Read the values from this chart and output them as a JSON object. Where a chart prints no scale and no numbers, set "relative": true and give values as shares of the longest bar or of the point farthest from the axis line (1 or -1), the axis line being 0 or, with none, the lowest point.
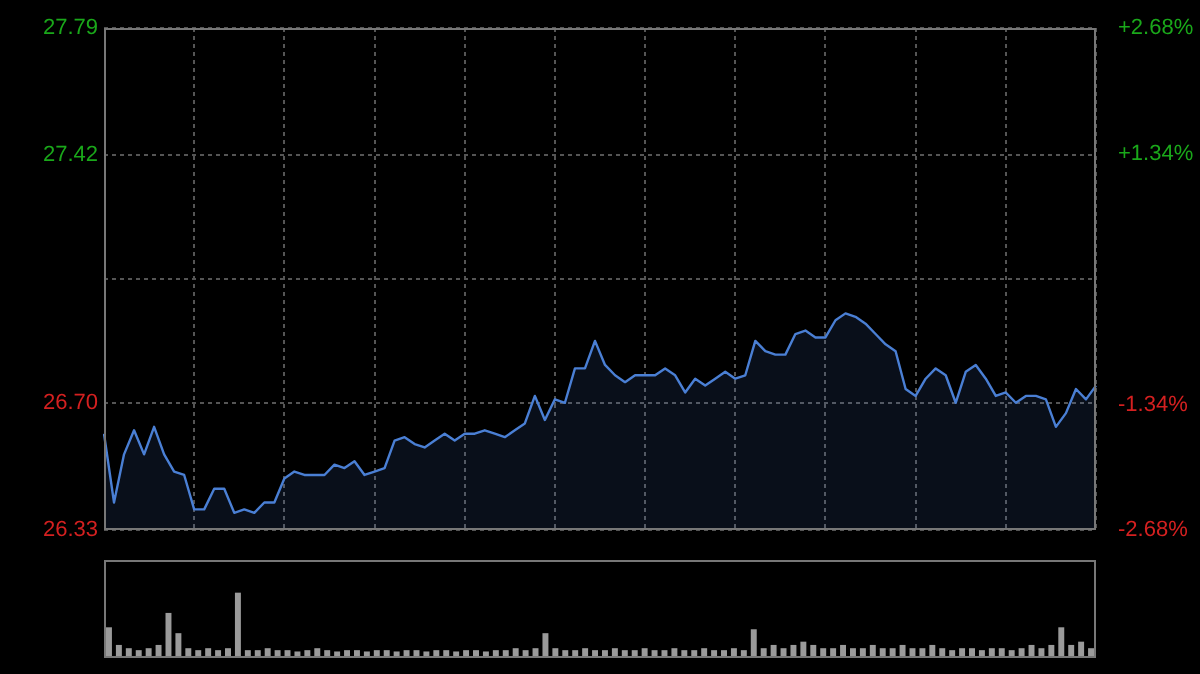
{
  "chart_data": [
    {
      "type": "area",
      "categories": [
        null,
        null,
        null,
        null,
        null,
        null,
        null,
        null,
        null,
        null,
        null,
        null,
        null,
        null,
        null,
        null,
        null,
        null,
        null,
        null,
        null,
        null,
        null,
        null,
        null,
        null,
        null,
        null,
        null,
        null,
        null,
        null,
        null,
        null,
        null,
        null,
        null,
        null,
        null,
        null,
        null,
        null,
        null,
        null,
        null,
        null,
        null,
        null,
        null,
        null,
        null,
        null,
        null,
        null,
        null,
        null,
        null,
        null,
        null,
        null,
        null,
        null,
        null,
        null,
        null,
        null,
        null,
        null,
        null,
        null,
        null,
        null,
        null,
        null,
        null,
        null,
        null,
        null,
        null,
        null,
        null,
        null,
        null,
        null,
        null,
        null,
        null,
        null,
        null,
        null,
        null,
        null,
        null,
        null,
        null,
        null,
        null,
        null,
        null,
        null
      ],
      "series": [
        {
          "color": "#4a7fd4",
          "values": [
            26.61,
            26.41,
            26.55,
            26.62,
            26.55,
            26.63,
            26.55,
            26.5,
            26.49,
            26.39,
            26.39,
            26.45,
            26.45,
            26.38,
            26.39,
            26.38,
            26.41,
            26.41,
            26.48,
            26.5,
            26.49,
            26.49,
            26.49,
            26.52,
            26.51,
            26.53,
            26.49,
            26.5,
            26.51,
            26.59,
            26.6,
            26.58,
            26.57,
            26.59,
            26.61,
            26.59,
            26.61,
            26.61,
            26.62,
            26.61,
            26.6,
            26.62,
            26.64,
            26.72,
            26.65,
            26.71,
            26.7,
            26.8,
            26.8,
            26.88,
            26.81,
            26.78,
            26.76,
            26.78,
            26.78,
            26.78,
            26.8,
            26.78,
            26.73,
            26.77,
            26.75,
            26.77,
            26.79,
            26.77,
            26.78,
            26.88,
            26.85,
            26.84,
            26.84,
            26.9,
            26.91,
            26.89,
            26.89,
            26.94,
            26.96,
            26.95,
            26.93,
            26.9,
            26.87,
            26.85,
            26.74,
            26.72,
            26.77,
            26.8,
            26.78,
            26.7,
            26.79,
            26.81,
            26.77,
            26.72,
            26.73,
            26.7,
            26.72,
            26.72,
            26.71,
            26.63,
            26.67,
            26.74,
            26.71,
            26.75
          ]
        }
      ],
      "ylim": [
        26.33,
        27.79
      ],
      "yticks": [
        26.33,
        {
          "value": 26.7,
          "label": "26.70"
        },
        {
          "value": 27.06,
          "label": null
        },
        27.42,
        27.79
      ],
      "y2lim": [
        -2.68,
        2.68
      ],
      "y2ticks": [
        {
          "value": -2.68,
          "label": "-2.68%"
        },
        {
          "value": -1.34,
          "label": "-1.34%"
        },
        {
          "value": 0,
          "label": null
        },
        {
          "value": 1.34,
          "label": "+1.34%"
        },
        {
          "value": 2.68,
          "label": "+2.68%"
        }
      ],
      "grid": true,
      "tick_labels": "y"
    },
    {
      "type": "bar",
      "relative": true,
      "tick_labels": false,
      "categories": [
        null,
        null,
        null,
        null,
        null,
        null,
        null,
        null,
        null,
        null,
        null,
        null,
        null,
        null,
        null,
        null,
        null,
        null,
        null,
        null,
        null,
        null,
        null,
        null,
        null,
        null,
        null,
        null,
        null,
        null,
        null,
        null,
        null,
        null,
        null,
        null,
        null,
        null,
        null,
        null,
        null,
        null,
        null,
        null,
        null,
        null,
        null,
        null,
        null,
        null,
        null,
        null,
        null,
        null,
        null,
        null,
        null,
        null,
        null,
        null,
        null,
        null,
        null,
        null,
        null,
        null,
        null,
        null,
        null,
        null,
        null,
        null,
        null,
        null,
        null,
        null,
        null,
        null,
        null,
        null,
        null,
        null,
        null,
        null,
        null,
        null,
        null,
        null,
        null,
        null,
        null,
        null,
        null,
        null,
        null,
        null,
        null,
        null,
        null,
        null
      ],
      "series": [
        {
          "color": "#9a9a9a",
          "values": [
            0.47,
            0.2,
            0.15,
            0.12,
            0.15,
            0.2,
            0.69,
            0.38,
            0.15,
            0.12,
            0.15,
            0.12,
            0.15,
            1,
            0.12,
            0.12,
            0.15,
            0.12,
            0.12,
            0.1,
            0.12,
            0.15,
            0.12,
            0.1,
            0.12,
            0.12,
            0.1,
            0.12,
            0.12,
            0.1,
            0.12,
            0.12,
            0.1,
            0.12,
            0.12,
            0.1,
            0.12,
            0.12,
            0.1,
            0.12,
            0.12,
            0.15,
            0.12,
            0.15,
            0.38,
            0.15,
            0.12,
            0.12,
            0.15,
            0.12,
            0.12,
            0.15,
            0.12,
            0.12,
            0.15,
            0.12,
            0.12,
            0.15,
            0.12,
            0.12,
            0.15,
            0.12,
            0.12,
            0.15,
            0.12,
            0.44,
            0.15,
            0.2,
            0.15,
            0.2,
            0.25,
            0.2,
            0.15,
            0.15,
            0.2,
            0.15,
            0.15,
            0.2,
            0.15,
            0.15,
            0.2,
            0.15,
            0.15,
            0.2,
            0.15,
            0.12,
            0.15,
            0.15,
            0.12,
            0.15,
            0.15,
            0.12,
            0.15,
            0.2,
            0.15,
            0.2,
            0.47,
            0.2,
            0.25,
            0.15
          ]
        }
      ]
    }
  ]
}
